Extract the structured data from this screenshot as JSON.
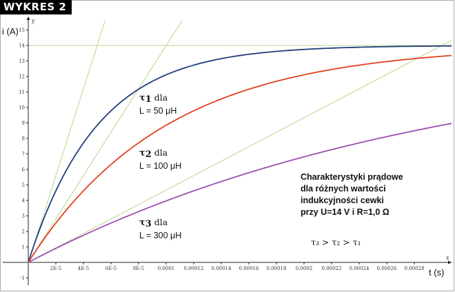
{
  "badge": "WYKRES 2",
  "chart_data": {
    "type": "line",
    "xlabel": "t (s)",
    "ylabel": "i (A)",
    "x_axis_name": "x",
    "y_axis_name": "y",
    "xlim": [
      0,
      0.0003
    ],
    "ylim": [
      -1.5,
      15.5
    ],
    "grid": false,
    "x_ticks": [
      "2E-5",
      "4E-5",
      "6E-5",
      "8E-5",
      "0.0001",
      "0.00012",
      "0.00014",
      "0.00016",
      "0.00018",
      "0.0002",
      "0.00022",
      "0.00024",
      "0.00026",
      "0.00028"
    ],
    "x_tick_values": [
      2e-05,
      4e-05,
      6e-05,
      8e-05,
      0.0001,
      0.00012,
      0.00014,
      0.00016,
      0.00018,
      0.0002,
      0.00022,
      0.00024,
      0.00026,
      0.00028
    ],
    "y_ticks": [
      -1,
      1,
      2,
      3,
      4,
      5,
      6,
      7,
      8,
      9,
      10,
      11,
      12,
      13,
      14,
      15
    ],
    "asymptote": {
      "y": 14,
      "color": "#b9d58c"
    },
    "series": [
      {
        "name": "τ1",
        "inductance": "L = 50 μH",
        "tau": 5e-05,
        "i_max": 14,
        "color": "#1f3d7a",
        "x": [
          0,
          1e-05,
          2e-05,
          4e-05,
          6e-05,
          8e-05,
          0.0001,
          0.00012,
          0.00014,
          0.00016,
          0.0002,
          0.00024,
          0.0003
        ],
        "y": [
          0,
          2.54,
          4.62,
          7.71,
          9.78,
          11.17,
          12.11,
          12.73,
          13.14,
          13.43,
          13.74,
          13.89,
          13.97
        ]
      },
      {
        "name": "τ2",
        "inductance": "L = 100 μH",
        "tau": 0.0001,
        "i_max": 14,
        "color": "#e0401c",
        "x": [
          0,
          2e-05,
          4e-05,
          6e-05,
          8e-05,
          0.0001,
          0.00012,
          0.00014,
          0.00016,
          0.0002,
          0.00024,
          0.0003
        ],
        "y": [
          0,
          2.54,
          4.62,
          6.32,
          7.71,
          8.85,
          9.78,
          10.54,
          11.17,
          12.11,
          12.73,
          13.3
        ]
      },
      {
        "name": "τ3",
        "inductance": "L = 300 μH",
        "tau": 0.0003,
        "i_max": 14,
        "color": "#9b4fb0",
        "x": [
          0,
          4e-05,
          8e-05,
          0.00012,
          0.00016,
          0.0002,
          0.00024,
          0.00028,
          0.0003
        ],
        "y": [
          0,
          1.74,
          3.28,
          4.62,
          5.81,
          6.81,
          7.71,
          8.5,
          8.85
        ]
      }
    ],
    "tangents": [
      {
        "tau": 5e-05,
        "color": "#b9d58c"
      },
      {
        "tau": 0.0001,
        "color": "#b9d58c"
      },
      {
        "tau": 0.0003,
        "color": "#b9d58c"
      }
    ],
    "annotations": {
      "tau1": {
        "symbol": "τ",
        "sub": "1",
        "text": " dla",
        "l": "L = 50 μH"
      },
      "tau2": {
        "symbol": "τ",
        "sub": "2",
        "text": " dla",
        "l": "L = 100 μH"
      },
      "tau3": {
        "symbol": "τ",
        "sub": "3",
        "text": " dla",
        "l": "L = 300 μH"
      },
      "info": [
        "Charakterystyki prądowe",
        "dla różnych wartości",
        "indukcyjności cewki",
        "przy  U=14 V i R=1,0 Ω"
      ],
      "relation": "τ₃ > τ₂ > τ₁"
    }
  }
}
